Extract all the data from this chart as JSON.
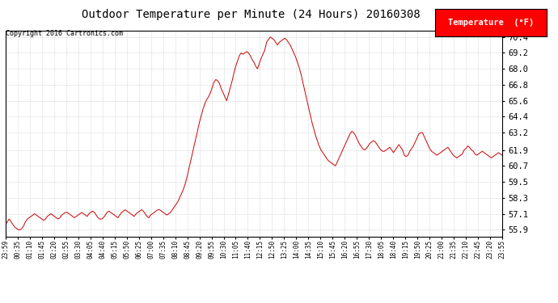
{
  "title": "Outdoor Temperature per Minute (24 Hours) 20160308",
  "copyright": "Copyright 2016 Cartronics.com",
  "legend_label": "Temperature  (°F)",
  "line_color": "#cc0000",
  "background_color": "#ffffff",
  "grid_color": "#bbbbbb",
  "yticks": [
    55.9,
    57.1,
    58.3,
    59.5,
    60.7,
    61.9,
    63.2,
    64.4,
    65.6,
    66.8,
    68.0,
    69.2,
    70.4
  ],
  "ylim": [
    55.4,
    70.9
  ],
  "xtick_labels": [
    "23:59",
    "00:35",
    "01:10",
    "01:45",
    "02:20",
    "02:55",
    "03:30",
    "04:05",
    "04:40",
    "05:15",
    "05:50",
    "06:25",
    "07:00",
    "07:35",
    "08:10",
    "08:45",
    "09:20",
    "09:55",
    "10:30",
    "11:05",
    "11:40",
    "12:15",
    "12:50",
    "13:25",
    "14:00",
    "14:35",
    "15:10",
    "15:45",
    "16:20",
    "16:55",
    "17:30",
    "18:05",
    "18:40",
    "19:15",
    "19:50",
    "20:25",
    "21:00",
    "21:35",
    "22:10",
    "22:45",
    "23:20",
    "23:55"
  ],
  "temperature_data": [
    56.3,
    56.5,
    56.7,
    56.5,
    56.3,
    56.1,
    56.0,
    55.9,
    55.9,
    56.0,
    56.2,
    56.5,
    56.7,
    56.8,
    56.9,
    57.0,
    57.1,
    57.0,
    56.9,
    56.8,
    56.7,
    56.6,
    56.7,
    56.9,
    57.0,
    57.1,
    57.0,
    56.9,
    56.8,
    56.7,
    56.8,
    57.0,
    57.1,
    57.2,
    57.2,
    57.1,
    57.0,
    56.9,
    56.8,
    56.9,
    57.0,
    57.1,
    57.2,
    57.1,
    57.0,
    56.9,
    57.1,
    57.2,
    57.3,
    57.2,
    57.0,
    56.8,
    56.7,
    56.7,
    56.8,
    57.0,
    57.2,
    57.3,
    57.2,
    57.1,
    57.0,
    56.9,
    56.8,
    57.0,
    57.2,
    57.3,
    57.4,
    57.3,
    57.2,
    57.1,
    57.0,
    56.9,
    57.1,
    57.2,
    57.3,
    57.4,
    57.3,
    57.1,
    56.9,
    56.8,
    57.0,
    57.1,
    57.2,
    57.3,
    57.4,
    57.4,
    57.3,
    57.2,
    57.1,
    57.0,
    57.1,
    57.2,
    57.4,
    57.6,
    57.8,
    58.0,
    58.3,
    58.6,
    58.9,
    59.3,
    59.8,
    60.4,
    61.0,
    61.6,
    62.2,
    62.8,
    63.4,
    64.0,
    64.5,
    65.0,
    65.4,
    65.7,
    65.9,
    66.2,
    66.6,
    67.0,
    67.2,
    67.1,
    66.9,
    66.5,
    66.2,
    65.9,
    65.6,
    66.1,
    66.6,
    67.1,
    67.7,
    68.2,
    68.6,
    69.0,
    69.2,
    69.1,
    69.2,
    69.3,
    69.2,
    69.0,
    68.7,
    68.5,
    68.2,
    68.0,
    68.4,
    68.8,
    69.1,
    69.4,
    70.0,
    70.2,
    70.4,
    70.3,
    70.2,
    70.0,
    69.8,
    70.0,
    70.1,
    70.2,
    70.3,
    70.2,
    70.0,
    69.8,
    69.5,
    69.2,
    68.9,
    68.5,
    68.1,
    67.6,
    67.0,
    66.4,
    65.8,
    65.2,
    64.6,
    64.0,
    63.5,
    63.0,
    62.6,
    62.2,
    61.9,
    61.7,
    61.5,
    61.3,
    61.1,
    61.0,
    60.9,
    60.8,
    60.7,
    61.0,
    61.3,
    61.6,
    61.9,
    62.2,
    62.5,
    62.8,
    63.1,
    63.3,
    63.2,
    63.0,
    62.7,
    62.4,
    62.2,
    62.0,
    61.9,
    62.0,
    62.2,
    62.4,
    62.5,
    62.6,
    62.5,
    62.3,
    62.1,
    61.9,
    61.8,
    61.8,
    61.9,
    62.0,
    62.1,
    61.9,
    61.7,
    61.9,
    62.1,
    62.3,
    62.1,
    61.9,
    61.5,
    61.4,
    61.5,
    61.8,
    62.0,
    62.2,
    62.5,
    62.8,
    63.1,
    63.2,
    63.2,
    62.9,
    62.6,
    62.3,
    62.0,
    61.8,
    61.7,
    61.6,
    61.5,
    61.6,
    61.7,
    61.8,
    61.9,
    62.0,
    62.1,
    61.9,
    61.7,
    61.5,
    61.4,
    61.3,
    61.4,
    61.5,
    61.6,
    61.9,
    62.0,
    62.2,
    62.1,
    61.9,
    61.8,
    61.6,
    61.5,
    61.6,
    61.7,
    61.8,
    61.7,
    61.6,
    61.5,
    61.4,
    61.3,
    61.4,
    61.5,
    61.6,
    61.7,
    61.6,
    61.5
  ]
}
